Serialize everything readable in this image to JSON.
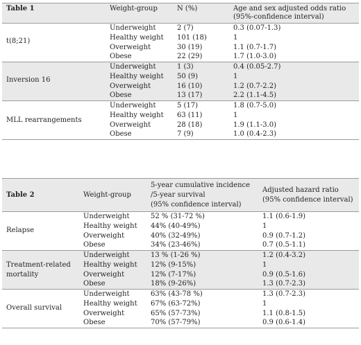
{
  "table1": {
    "title": "Table 1",
    "headers": {
      "group": "Weight-group",
      "n": "N (%)",
      "ratio_line1": "Age and sex adjusted odds ratio",
      "ratio_line2": "(95%-confidence interval)"
    },
    "groups": [
      {
        "label_line1": "t(8;21)",
        "label_line2": "",
        "rows": [
          {
            "weight": "Underweight",
            "n": "2 (7)",
            "ratio": "0.3 (0.07-1.3)"
          },
          {
            "weight": "Healthy weight",
            "n": "101 (18)",
            "ratio": "1"
          },
          {
            "weight": "Overweight",
            "n": "30 (19)",
            "ratio": "1.1 (0.7-1.7)"
          },
          {
            "weight": "Obese",
            "n": "22 (29)",
            "ratio": "1.7 (1.0-3.0)"
          }
        ]
      },
      {
        "label_line1": "Inversion 16",
        "label_line2": "",
        "rows": [
          {
            "weight": "Underweight",
            "n": "1 (3)",
            "ratio": "0.4 (0.05-2.7)"
          },
          {
            "weight": "Healthy weight",
            "n": "50 (9)",
            "ratio": "1"
          },
          {
            "weight": "Overweight",
            "n": "16 (10)",
            "ratio": "1.2 (0.7-2.2)"
          },
          {
            "weight": "Obese",
            "n": "13 (17)",
            "ratio": "2.2 (1.1-4.5)"
          }
        ]
      },
      {
        "label_line1": "MLL rearrangements",
        "label_line2": "",
        "rows": [
          {
            "weight": "Underweight",
            "n": "5 (17)",
            "ratio": "1.8 (0.7-5.0)"
          },
          {
            "weight": "Healthy weight",
            "n": "63 (11)",
            "ratio": "1"
          },
          {
            "weight": "Overweight",
            "n": "28 (18)",
            "ratio": "1.9 (1.1-3.0)"
          },
          {
            "weight": "Obese",
            "n": "7 (9)",
            "ratio": "1.0 (0.4-2.3)"
          }
        ]
      }
    ]
  },
  "table2": {
    "title": "Table 2",
    "headers": {
      "group": "Weight-group",
      "incidence_line1": "5-year cumulative incidence",
      "incidence_line2": "/5-year survival",
      "incidence_line3": "(95% confidence interval)",
      "ratio_line1": "Adjusted hazard ratio",
      "ratio_line2": "(95% confidence interval)"
    },
    "groups": [
      {
        "label_line1": "Relapse",
        "label_line2": "",
        "rows": [
          {
            "weight": "Underweight",
            "incidence": "52 % (31-72 %)",
            "ratio": "1.1 (0.6-1.9)"
          },
          {
            "weight": "Healthy weight",
            "incidence": "44% (40-49%)",
            "ratio": "1"
          },
          {
            "weight": "Overweight",
            "incidence": "40% (32-49%)",
            "ratio": "0.9 (0.7-1.2)"
          },
          {
            "weight": "Obese",
            "incidence": "34% (23-46%)",
            "ratio": "0.7 (0.5-1.1)"
          }
        ]
      },
      {
        "label_line1": "Treatment-related",
        "label_line2": "mortality",
        "rows": [
          {
            "weight": "Underweight",
            "incidence": "13 % (1-26 %)",
            "ratio": "1.2 (0.4-3.2)"
          },
          {
            "weight": "Healthy weight",
            "incidence": "12% (9-15%)",
            "ratio": "1"
          },
          {
            "weight": "Overweight",
            "incidence": "12% (7-17%)",
            "ratio": "0.9 (0.5-1.6)"
          },
          {
            "weight": "Obese",
            "incidence": "18% (9-26%)",
            "ratio": "1.3 (0.7-2.3)"
          }
        ]
      },
      {
        "label_line1": "Overall survival",
        "label_line2": "",
        "rows": [
          {
            "weight": "Underweight",
            "incidence": "63% (43-78 %)",
            "ratio": "1.3 (0.7-2.3)"
          },
          {
            "weight": "Healthy weight",
            "incidence": "67% (63-72%)",
            "ratio": "1"
          },
          {
            "weight": "Overweight",
            "incidence": "65% (57-73%)",
            "ratio": "1.1 (0.8-1.5)"
          },
          {
            "weight": "Obese",
            "incidence": "70% (57-79%)",
            "ratio": "0.9 (0.6-1.4)"
          }
        ]
      }
    ]
  }
}
